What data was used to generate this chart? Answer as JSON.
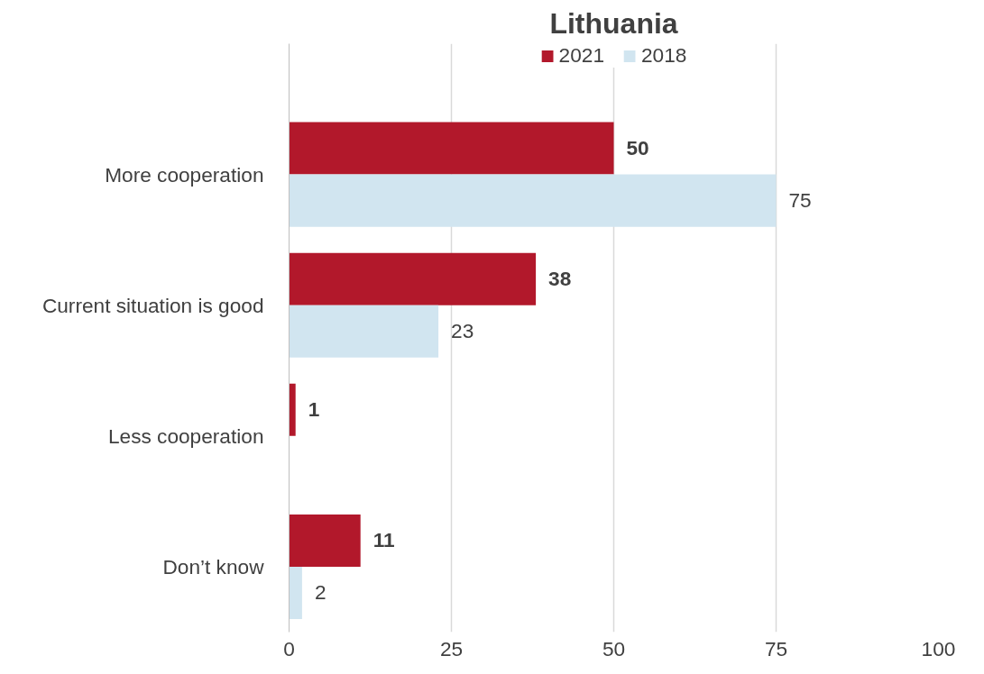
{
  "chart_data": {
    "type": "bar",
    "orientation": "horizontal",
    "title": "Lithuania",
    "categories": [
      "More cooperation",
      "Current situation is good",
      "Less cooperation",
      "Don’t know"
    ],
    "series": [
      {
        "name": "2021",
        "color": "#b2182b",
        "values": [
          50,
          38,
          1,
          11
        ]
      },
      {
        "name": "2018",
        "color": "#d1e5f0",
        "values": [
          75,
          23,
          null,
          2
        ]
      }
    ],
    "xlim": [
      0,
      100
    ],
    "xticks": [
      0,
      25,
      50,
      75,
      100
    ],
    "grid": "x",
    "legend": "top",
    "data_labels": true
  }
}
